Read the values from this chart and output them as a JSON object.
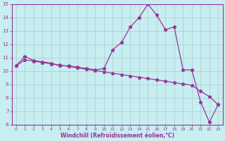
{
  "xlabel": "Windchill (Refroidissement éolien,°C)",
  "ylabel": "",
  "xlim": [
    -0.5,
    23.5
  ],
  "ylim": [
    6,
    15
  ],
  "yticks": [
    6,
    7,
    8,
    9,
    10,
    11,
    12,
    13,
    14,
    15
  ],
  "xticks": [
    0,
    1,
    2,
    3,
    4,
    5,
    6,
    7,
    8,
    9,
    10,
    11,
    12,
    13,
    14,
    15,
    16,
    17,
    18,
    19,
    20,
    21,
    22,
    23
  ],
  "background_color": "#c7eef0",
  "grid_color": "#b0c8cc",
  "line_color": "#993399",
  "curve1_x": [
    0,
    1,
    2,
    3,
    4,
    5,
    6,
    7,
    8,
    9,
    10,
    11,
    12,
    13,
    14,
    15,
    16,
    17,
    18,
    19,
    20,
    21,
    22,
    23
  ],
  "curve1_y": [
    10.4,
    10.85,
    10.75,
    10.65,
    10.55,
    10.45,
    10.35,
    10.25,
    10.15,
    10.05,
    9.95,
    9.85,
    9.75,
    9.65,
    9.55,
    9.45,
    9.35,
    9.25,
    9.15,
    9.05,
    8.95,
    8.5,
    8.1,
    7.5
  ],
  "curve2_x": [
    0,
    1,
    2,
    3,
    4,
    5,
    6,
    7,
    8,
    9,
    10,
    11,
    12,
    13,
    14,
    15,
    16,
    17,
    18,
    19,
    20,
    21,
    22,
    23
  ],
  "curve2_y": [
    10.4,
    11.1,
    10.8,
    10.7,
    10.6,
    10.4,
    10.4,
    10.3,
    10.2,
    10.1,
    10.2,
    11.6,
    12.15,
    13.3,
    14.0,
    15.0,
    14.2,
    13.1,
    13.3,
    10.1,
    10.1,
    7.7,
    6.2,
    7.5
  ],
  "marker": "*",
  "markersize": 3.5,
  "linewidth": 0.9
}
